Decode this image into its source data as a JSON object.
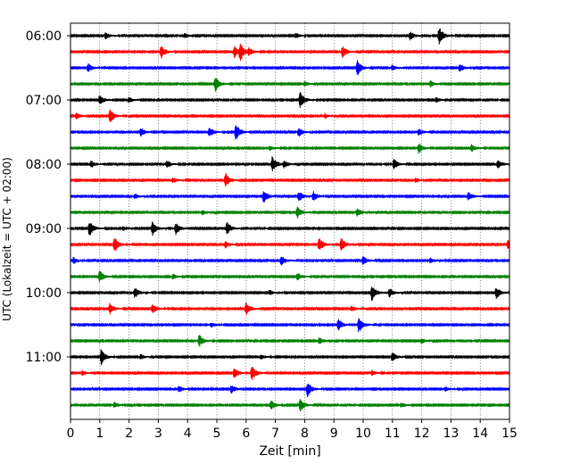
{
  "chart_data": {
    "type": "line",
    "title": "",
    "xlabel": "Zeit  [min]",
    "ylabel": "UTC (Lokalzeit = UTC + 02:00)",
    "xlim": [
      0,
      15
    ],
    "x_ticks": [
      0,
      1,
      2,
      3,
      4,
      5,
      6,
      7,
      8,
      9,
      10,
      11,
      12,
      13,
      14,
      15
    ],
    "x_tick_labels": [
      "0",
      "1",
      "2",
      "3",
      "4",
      "5",
      "6",
      "7",
      "8",
      "9",
      "10",
      "11",
      "12",
      "13",
      "14",
      "15"
    ],
    "y_tick_labels": [
      "06:00",
      "07:00",
      "08:00",
      "09:00",
      "10:00",
      "11:00"
    ],
    "grid_x": true,
    "trace_interval_min": 15,
    "color_cycle": [
      "#000000",
      "#ff0000",
      "#0000ff",
      "#008000"
    ],
    "traces": [
      {
        "start": "06:00",
        "events": [
          [
            12.6,
            1.0
          ],
          [
            11.6,
            0.5
          ],
          [
            1.2,
            0.35
          ],
          [
            7.7,
            0.3
          ],
          [
            3.9,
            0.3
          ]
        ]
      },
      {
        "start": "06:15",
        "events": [
          [
            5.8,
            1.0
          ],
          [
            5.6,
            0.7
          ],
          [
            3.1,
            0.75
          ],
          [
            9.3,
            0.7
          ],
          [
            6.1,
            0.4
          ]
        ]
      },
      {
        "start": "06:30",
        "events": [
          [
            9.8,
            0.9
          ],
          [
            0.6,
            0.5
          ],
          [
            13.3,
            0.5
          ],
          [
            11.0,
            0.3
          ]
        ]
      },
      {
        "start": "06:45",
        "events": [
          [
            4.95,
            0.9
          ],
          [
            12.3,
            0.35
          ],
          [
            8.0,
            0.3
          ]
        ]
      },
      {
        "start": "07:00",
        "events": [
          [
            7.85,
            1.0
          ],
          [
            1.0,
            0.6
          ],
          [
            2.0,
            0.3
          ],
          [
            12.5,
            0.3
          ]
        ]
      },
      {
        "start": "07:15",
        "events": [
          [
            1.35,
            0.9
          ],
          [
            0.2,
            0.4
          ],
          [
            8.7,
            0.3
          ]
        ]
      },
      {
        "start": "07:30",
        "events": [
          [
            5.65,
            1.0
          ],
          [
            4.75,
            0.6
          ],
          [
            7.8,
            0.6
          ],
          [
            2.4,
            0.55
          ],
          [
            11.9,
            0.4
          ]
        ]
      },
      {
        "start": "07:45",
        "events": [
          [
            11.9,
            0.6
          ],
          [
            13.7,
            0.45
          ],
          [
            6.8,
            0.3
          ]
        ]
      },
      {
        "start": "08:00",
        "events": [
          [
            6.9,
            1.0
          ],
          [
            11.05,
            0.6
          ],
          [
            14.6,
            0.55
          ],
          [
            0.7,
            0.45
          ],
          [
            3.3,
            0.45
          ],
          [
            7.3,
            0.4
          ]
        ]
      },
      {
        "start": "08:15",
        "events": [
          [
            5.3,
            0.9
          ],
          [
            3.5,
            0.3
          ],
          [
            11.8,
            0.3
          ]
        ]
      },
      {
        "start": "08:30",
        "events": [
          [
            6.6,
            0.8
          ],
          [
            7.8,
            0.65
          ],
          [
            8.3,
            0.55
          ],
          [
            13.6,
            0.5
          ],
          [
            2.2,
            0.3
          ]
        ]
      },
      {
        "start": "08:45",
        "events": [
          [
            7.75,
            0.7
          ],
          [
            9.8,
            0.5
          ],
          [
            4.5,
            0.3
          ]
        ]
      },
      {
        "start": "09:00",
        "events": [
          [
            0.65,
            0.95
          ],
          [
            2.8,
            0.9
          ],
          [
            3.6,
            0.7
          ],
          [
            5.35,
            0.75
          ],
          [
            1.8,
            0.3
          ]
        ]
      },
      {
        "start": "09:15",
        "events": [
          [
            1.5,
            1.0
          ],
          [
            8.5,
            0.9
          ],
          [
            9.25,
            0.9
          ],
          [
            14.95,
            0.6
          ],
          [
            5.3,
            0.4
          ]
        ]
      },
      {
        "start": "09:30",
        "events": [
          [
            7.2,
            0.6
          ],
          [
            10.0,
            0.5
          ],
          [
            0.1,
            0.4
          ],
          [
            12.3,
            0.3
          ]
        ]
      },
      {
        "start": "09:45",
        "events": [
          [
            1.0,
            0.7
          ],
          [
            7.75,
            0.5
          ],
          [
            3.5,
            0.3
          ]
        ]
      },
      {
        "start": "10:00",
        "events": [
          [
            10.3,
            1.0
          ],
          [
            14.55,
            0.7
          ],
          [
            2.2,
            0.65
          ],
          [
            10.9,
            0.5
          ],
          [
            6.8,
            0.3
          ]
        ]
      },
      {
        "start": "10:15",
        "events": [
          [
            6.0,
            0.8
          ],
          [
            1.35,
            0.65
          ],
          [
            2.8,
            0.6
          ],
          [
            9.6,
            0.3
          ]
        ]
      },
      {
        "start": "10:30",
        "events": [
          [
            9.85,
            1.0
          ],
          [
            9.15,
            0.7
          ],
          [
            4.8,
            0.3
          ]
        ]
      },
      {
        "start": "10:45",
        "events": [
          [
            4.4,
            0.7
          ],
          [
            8.5,
            0.4
          ],
          [
            12.0,
            0.3
          ]
        ]
      },
      {
        "start": "11:00",
        "events": [
          [
            1.05,
            0.9
          ],
          [
            11.0,
            0.6
          ],
          [
            6.5,
            0.3
          ],
          [
            2.4,
            0.3
          ]
        ]
      },
      {
        "start": "11:15",
        "events": [
          [
            6.2,
            0.9
          ],
          [
            5.6,
            0.6
          ],
          [
            0.4,
            0.3
          ],
          [
            10.3,
            0.3
          ]
        ]
      },
      {
        "start": "11:30",
        "events": [
          [
            8.1,
            0.9
          ],
          [
            5.5,
            0.5
          ],
          [
            3.7,
            0.4
          ],
          [
            12.8,
            0.3
          ]
        ]
      },
      {
        "start": "11:45",
        "events": [
          [
            7.85,
            0.8
          ],
          [
            6.85,
            0.6
          ],
          [
            1.5,
            0.35
          ],
          [
            11.3,
            0.3
          ]
        ]
      }
    ]
  }
}
